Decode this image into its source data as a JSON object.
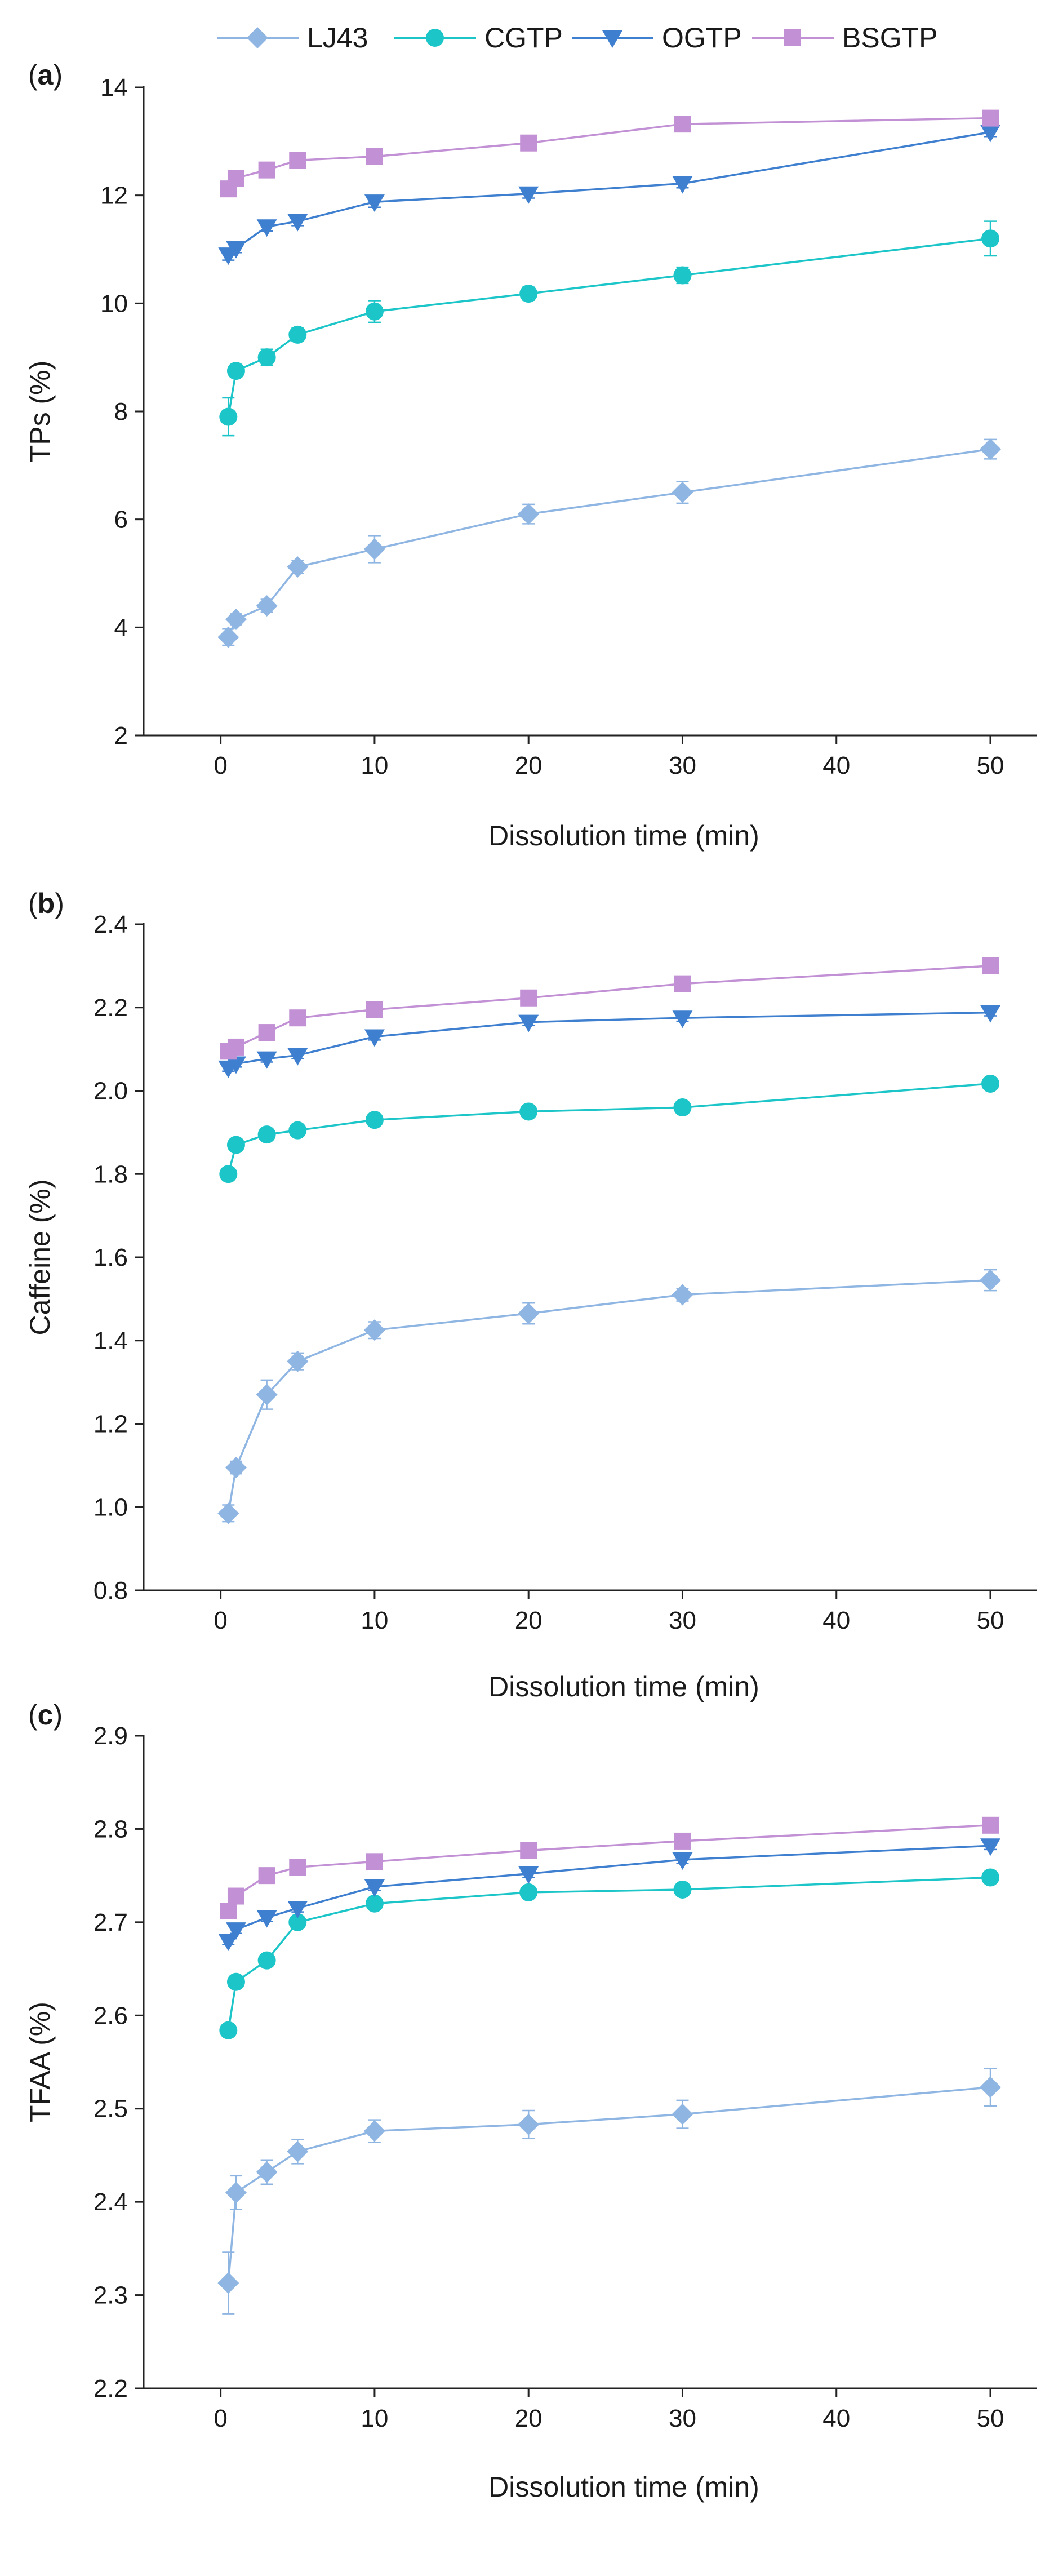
{
  "legend": [
    "LJ43",
    "CGTP",
    "OGTP",
    "BSGTP"
  ],
  "series_styles": [
    {
      "name": "LJ43",
      "color": "#8fb6e3",
      "marker": "diamond"
    },
    {
      "name": "CGTP",
      "color": "#1cc5c8",
      "marker": "circle"
    },
    {
      "name": "OGTP",
      "color": "#3f7fcf",
      "marker": "triangle-down"
    },
    {
      "name": "BSGTP",
      "color": "#c290d4",
      "marker": "square"
    }
  ],
  "chart_data": [
    {
      "type": "line",
      "panel": "a",
      "panel_text": [
        "(",
        "a",
        ")"
      ],
      "xlabel": "Dissolution time (min)",
      "ylabel": "TPs (%)",
      "xlim": [
        -5,
        53
      ],
      "ylim": [
        2,
        14
      ],
      "xticks": [
        "0",
        "10",
        "20",
        "30",
        "40",
        "50"
      ],
      "yticks": [
        "2",
        "4",
        "6",
        "8",
        "10",
        "12",
        "14"
      ],
      "x": [
        0.5,
        1,
        3,
        5,
        10,
        20,
        30,
        50
      ],
      "series": [
        {
          "name": "LJ43",
          "values": [
            3.82,
            4.15,
            4.4,
            5.12,
            5.45,
            6.1,
            6.5,
            7.3
          ],
          "errors": [
            0.15,
            0.1,
            0.12,
            0.12,
            0.25,
            0.18,
            0.2,
            0.18
          ]
        },
        {
          "name": "CGTP",
          "values": [
            7.9,
            8.75,
            9.0,
            9.42,
            9.85,
            10.18,
            10.52,
            11.2
          ],
          "errors": [
            0.35,
            0.12,
            0.15,
            0.12,
            0.2,
            0.12,
            0.15,
            0.32
          ]
        },
        {
          "name": "OGTP",
          "values": [
            10.9,
            11.02,
            11.42,
            11.52,
            11.88,
            12.03,
            12.22,
            13.17
          ],
          "errors": [
            0.1,
            0.08,
            0.08,
            0.08,
            0.1,
            0.08,
            0.08,
            0.08
          ]
        },
        {
          "name": "BSGTP",
          "values": [
            12.12,
            12.32,
            12.47,
            12.65,
            12.72,
            12.97,
            13.32,
            13.43
          ],
          "errors": [
            0.06,
            0.05,
            0.05,
            0.05,
            0.05,
            0.05,
            0.05,
            0.06
          ]
        }
      ]
    },
    {
      "type": "line",
      "panel": "b",
      "panel_text": [
        "(",
        "b",
        ")"
      ],
      "xlabel": "Dissolution time (min)",
      "ylabel": "Caffeine (%)",
      "xlim": [
        -5,
        53
      ],
      "ylim": [
        0.8,
        2.4
      ],
      "xticks": [
        "0",
        "10",
        "20",
        "30",
        "40",
        "50"
      ],
      "yticks": [
        "0.8",
        "1.0",
        "1.2",
        "1.4",
        "1.6",
        "1.8",
        "2.0",
        "2.2",
        "2.4"
      ],
      "x": [
        0.5,
        1,
        3,
        5,
        10,
        20,
        30,
        50
      ],
      "series": [
        {
          "name": "LJ43",
          "values": [
            0.985,
            1.095,
            1.27,
            1.35,
            1.425,
            1.465,
            1.51,
            1.545
          ],
          "errors": [
            0.02,
            0.015,
            0.035,
            0.02,
            0.02,
            0.025,
            0.015,
            0.025
          ]
        },
        {
          "name": "CGTP",
          "values": [
            1.8,
            1.87,
            1.895,
            1.905,
            1.93,
            1.95,
            1.96,
            2.017
          ],
          "errors": [
            0.01,
            0.01,
            0.01,
            0.01,
            0.01,
            0.01,
            0.01,
            0.01
          ]
        },
        {
          "name": "OGTP",
          "values": [
            2.055,
            2.065,
            2.077,
            2.085,
            2.13,
            2.165,
            2.175,
            2.188
          ],
          "errors": [
            0.008,
            0.008,
            0.008,
            0.008,
            0.008,
            0.008,
            0.008,
            0.008
          ]
        },
        {
          "name": "BSGTP",
          "values": [
            2.095,
            2.105,
            2.14,
            2.175,
            2.195,
            2.223,
            2.257,
            2.3
          ],
          "errors": [
            0.008,
            0.008,
            0.008,
            0.008,
            0.008,
            0.008,
            0.008,
            0.008
          ]
        }
      ]
    },
    {
      "type": "line",
      "panel": "c",
      "panel_text": [
        "(",
        "c",
        ")"
      ],
      "xlabel": "Dissolution time (min)",
      "ylabel": "TFAA (%)",
      "xlim": [
        -5,
        53
      ],
      "ylim": [
        2.2,
        2.9
      ],
      "xticks": [
        "0",
        "10",
        "20",
        "30",
        "40",
        "50"
      ],
      "yticks": [
        "2.2",
        "2.3",
        "2.4",
        "2.5",
        "2.6",
        "2.7",
        "2.8",
        "2.9"
      ],
      "x": [
        0.5,
        1,
        3,
        5,
        10,
        20,
        30,
        50
      ],
      "series": [
        {
          "name": "LJ43",
          "values": [
            2.313,
            2.41,
            2.432,
            2.454,
            2.476,
            2.483,
            2.494,
            2.523
          ],
          "errors": [
            0.033,
            0.018,
            0.013,
            0.013,
            0.012,
            0.015,
            0.015,
            0.02
          ]
        },
        {
          "name": "CGTP",
          "values": [
            2.584,
            2.636,
            2.659,
            2.7,
            2.72,
            2.732,
            2.735,
            2.748
          ],
          "errors": [
            0.004,
            0.004,
            0.004,
            0.004,
            0.004,
            0.004,
            0.004,
            0.006
          ]
        },
        {
          "name": "OGTP",
          "values": [
            2.68,
            2.692,
            2.705,
            2.715,
            2.738,
            2.752,
            2.767,
            2.782
          ],
          "errors": [
            0.004,
            0.004,
            0.004,
            0.004,
            0.004,
            0.004,
            0.004,
            0.004
          ]
        },
        {
          "name": "BSGTP",
          "values": [
            2.712,
            2.728,
            2.75,
            2.759,
            2.765,
            2.777,
            2.787,
            2.804
          ],
          "errors": [
            0.004,
            0.004,
            0.004,
            0.004,
            0.004,
            0.004,
            0.004,
            0.004
          ]
        }
      ]
    }
  ]
}
